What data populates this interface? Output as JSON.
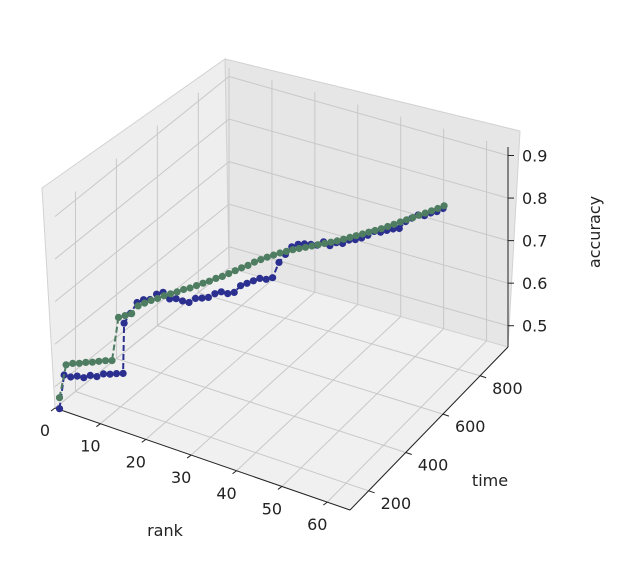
{
  "chart_data": {
    "type": "line",
    "projection": "3d",
    "xlabel": "rank",
    "ylabel": "time",
    "zlabel": "accuracy",
    "xticks": [
      "0",
      "10",
      "20",
      "30",
      "40",
      "50",
      "60"
    ],
    "yticks": [
      "200",
      "400",
      "600",
      "800"
    ],
    "zticks": [
      "0.5",
      "0.6",
      "0.7",
      "0.8",
      "0.9"
    ],
    "xlim": [
      0,
      65
    ],
    "ylim": [
      100,
      950
    ],
    "zlim": [
      0.45,
      0.92
    ],
    "grid": true,
    "series": [
      {
        "color": "#2b2f8f",
        "marker": "circle",
        "line": "dashed",
        "points": [
          [
            1,
            100,
            0.452
          ],
          [
            2,
            100,
            0.535
          ],
          [
            3,
            110,
            0.53
          ],
          [
            4,
            120,
            0.532
          ],
          [
            5,
            130,
            0.528
          ],
          [
            6,
            140,
            0.533
          ],
          [
            7,
            150,
            0.53
          ],
          [
            8,
            160,
            0.536
          ],
          [
            9,
            170,
            0.535
          ],
          [
            10,
            180,
            0.536
          ],
          [
            11,
            190,
            0.536
          ],
          [
            11,
            195,
            0.652
          ],
          [
            12,
            205,
            0.675
          ],
          [
            13,
            215,
            0.7
          ],
          [
            14,
            225,
            0.706
          ],
          [
            15,
            235,
            0.706
          ],
          [
            16,
            245,
            0.718
          ],
          [
            17,
            255,
            0.722
          ],
          [
            18,
            265,
            0.706
          ],
          [
            19,
            275,
            0.706
          ],
          [
            20,
            285,
            0.7
          ],
          [
            21,
            295,
            0.696
          ],
          [
            22,
            305,
            0.705
          ],
          [
            23,
            315,
            0.705
          ],
          [
            24,
            325,
            0.706
          ],
          [
            25,
            335,
            0.714
          ],
          [
            26,
            345,
            0.718
          ],
          [
            27,
            355,
            0.713
          ],
          [
            28,
            365,
            0.715
          ],
          [
            29,
            375,
            0.73
          ],
          [
            30,
            385,
            0.735
          ],
          [
            31,
            395,
            0.74
          ],
          [
            32,
            405,
            0.745
          ],
          [
            33,
            415,
            0.742
          ],
          [
            34,
            425,
            0.745
          ],
          [
            35,
            435,
            0.78
          ],
          [
            36,
            445,
            0.798
          ],
          [
            37,
            455,
            0.815
          ],
          [
            38,
            465,
            0.82
          ],
          [
            39,
            475,
            0.82
          ],
          [
            40,
            485,
            0.818
          ],
          [
            41,
            495,
            0.815
          ],
          [
            42,
            505,
            0.822
          ],
          [
            43,
            515,
            0.812
          ],
          [
            44,
            525,
            0.818
          ],
          [
            45,
            535,
            0.815
          ],
          [
            46,
            545,
            0.822
          ],
          [
            47,
            555,
            0.822
          ],
          [
            48,
            565,
            0.825
          ],
          [
            49,
            575,
            0.83
          ],
          [
            50,
            585,
            0.838
          ],
          [
            51,
            595,
            0.835
          ],
          [
            52,
            605,
            0.838
          ],
          [
            53,
            615,
            0.84
          ],
          [
            54,
            625,
            0.84
          ],
          [
            55,
            635,
            0.855
          ],
          [
            56,
            645,
            0.862
          ],
          [
            57,
            655,
            0.868
          ],
          [
            58,
            665,
            0.865
          ],
          [
            59,
            675,
            0.87
          ],
          [
            60,
            685,
            0.872
          ],
          [
            61,
            695,
            0.878
          ]
        ]
      },
      {
        "color": "#4e7d62",
        "marker": "circle",
        "line": "dashed",
        "points": [
          [
            1,
            100,
            0.478
          ],
          [
            2,
            110,
            0.555
          ],
          [
            3,
            120,
            0.558
          ],
          [
            4,
            130,
            0.558
          ],
          [
            5,
            140,
            0.56
          ],
          [
            6,
            150,
            0.56
          ],
          [
            7,
            160,
            0.562
          ],
          [
            8,
            170,
            0.563
          ],
          [
            9,
            180,
            0.563
          ],
          [
            10,
            190,
            0.664
          ],
          [
            11,
            200,
            0.668
          ],
          [
            12,
            210,
            0.672
          ],
          [
            13,
            220,
            0.69
          ],
          [
            14,
            230,
            0.696
          ],
          [
            15,
            240,
            0.702
          ],
          [
            16,
            250,
            0.706
          ],
          [
            17,
            260,
            0.712
          ],
          [
            18,
            270,
            0.716
          ],
          [
            19,
            280,
            0.72
          ],
          [
            20,
            290,
            0.725
          ],
          [
            21,
            300,
            0.728
          ],
          [
            22,
            310,
            0.733
          ],
          [
            23,
            320,
            0.738
          ],
          [
            24,
            330,
            0.742
          ],
          [
            25,
            340,
            0.748
          ],
          [
            26,
            350,
            0.752
          ],
          [
            27,
            360,
            0.758
          ],
          [
            28,
            370,
            0.764
          ],
          [
            29,
            380,
            0.77
          ],
          [
            30,
            390,
            0.775
          ],
          [
            31,
            400,
            0.782
          ],
          [
            32,
            410,
            0.787
          ],
          [
            33,
            420,
            0.792
          ],
          [
            34,
            430,
            0.796
          ],
          [
            35,
            440,
            0.8
          ],
          [
            36,
            450,
            0.803
          ],
          [
            37,
            460,
            0.806
          ],
          [
            38,
            470,
            0.808
          ],
          [
            39,
            480,
            0.81
          ],
          [
            40,
            490,
            0.812
          ],
          [
            41,
            500,
            0.814
          ],
          [
            42,
            510,
            0.816
          ],
          [
            43,
            520,
            0.818
          ],
          [
            44,
            530,
            0.82
          ],
          [
            45,
            540,
            0.823
          ],
          [
            46,
            550,
            0.826
          ],
          [
            47,
            560,
            0.829
          ],
          [
            48,
            570,
            0.832
          ],
          [
            49,
            580,
            0.835
          ],
          [
            50,
            590,
            0.838
          ],
          [
            51,
            600,
            0.841
          ],
          [
            52,
            610,
            0.845
          ],
          [
            53,
            620,
            0.849
          ],
          [
            54,
            630,
            0.853
          ],
          [
            55,
            640,
            0.857
          ],
          [
            56,
            650,
            0.861
          ],
          [
            57,
            660,
            0.865
          ],
          [
            58,
            670,
            0.869
          ],
          [
            59,
            680,
            0.873
          ],
          [
            60,
            690,
            0.877
          ],
          [
            61,
            700,
            0.882
          ]
        ]
      }
    ]
  }
}
